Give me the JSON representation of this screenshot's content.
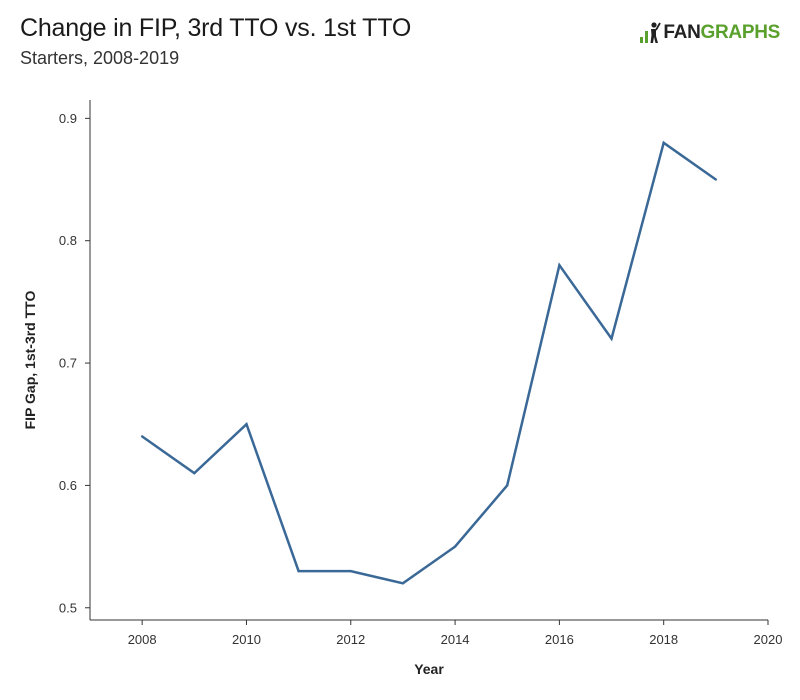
{
  "header": {
    "title": "Change in FIP, 3rd TTO vs. 1st TTO",
    "subtitle": "Starters, 2008-2019"
  },
  "logo": {
    "icon": "fangraphs-batter-icon",
    "text_dark": "FAN",
    "text_green": "GRAPHS",
    "colors": {
      "dark": "#222222",
      "green": "#5aa02c"
    }
  },
  "chart_data": {
    "type": "line",
    "title": "Change in FIP, 3rd TTO vs. 1st TTO",
    "subtitle": "Starters, 2008-2019",
    "xlabel": "Year",
    "ylabel": "FIP Gap, 1st-3rd TTO",
    "xlim": [
      2007,
      2020
    ],
    "ylim": [
      0.49,
      0.915
    ],
    "xticks": [
      2008,
      2010,
      2012,
      2014,
      2016,
      2018,
      2020
    ],
    "yticks": [
      0.5,
      0.6,
      0.7,
      0.8,
      0.9
    ],
    "grid": false,
    "legend": "none",
    "line_color": "#3a6897",
    "series": [
      {
        "x": [
          2008,
          2009,
          2010,
          2011,
          2012,
          2013,
          2014,
          2015,
          2016,
          2017,
          2018,
          2019
        ],
        "values": [
          0.64,
          0.61,
          0.65,
          0.53,
          0.53,
          0.52,
          0.55,
          0.6,
          0.78,
          0.72,
          0.88,
          0.85
        ]
      }
    ]
  }
}
